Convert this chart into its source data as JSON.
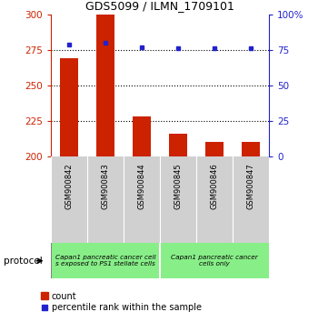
{
  "title": "GDS5099 / ILMN_1709101",
  "samples": [
    "GSM900842",
    "GSM900843",
    "GSM900844",
    "GSM900845",
    "GSM900846",
    "GSM900847"
  ],
  "counts": [
    269,
    300,
    228,
    216,
    210,
    210
  ],
  "percentile_ranks": [
    79,
    80,
    77,
    76,
    76,
    76
  ],
  "ylim_left": [
    200,
    300
  ],
  "ylim_right": [
    0,
    100
  ],
  "yticks_left": [
    200,
    225,
    250,
    275,
    300
  ],
  "yticks_right": [
    0,
    25,
    50,
    75,
    100
  ],
  "ytick_labels_right": [
    "0",
    "25",
    "50",
    "75",
    "100%"
  ],
  "hlines": [
    275,
    250,
    225
  ],
  "bar_color": "#cc2200",
  "dot_color": "#2222cc",
  "group1_label_line1": "Capan1 pancreatic cancer cell",
  "group1_label_line2": "s exposed to PS1 stellate cells",
  "group2_label_line1": "Capan1 pancreatic cancer",
  "group2_label_line2": "cells only",
  "protocol_label": "protocol",
  "legend_count_label": "count",
  "legend_percentile_label": "percentile rank within the sample",
  "bar_width": 0.5,
  "left_axis_color": "#cc2200",
  "right_axis_color": "#2222cc",
  "sample_bg_color": "#d0d0d0",
  "protocol_bg_color": "#88ee88"
}
